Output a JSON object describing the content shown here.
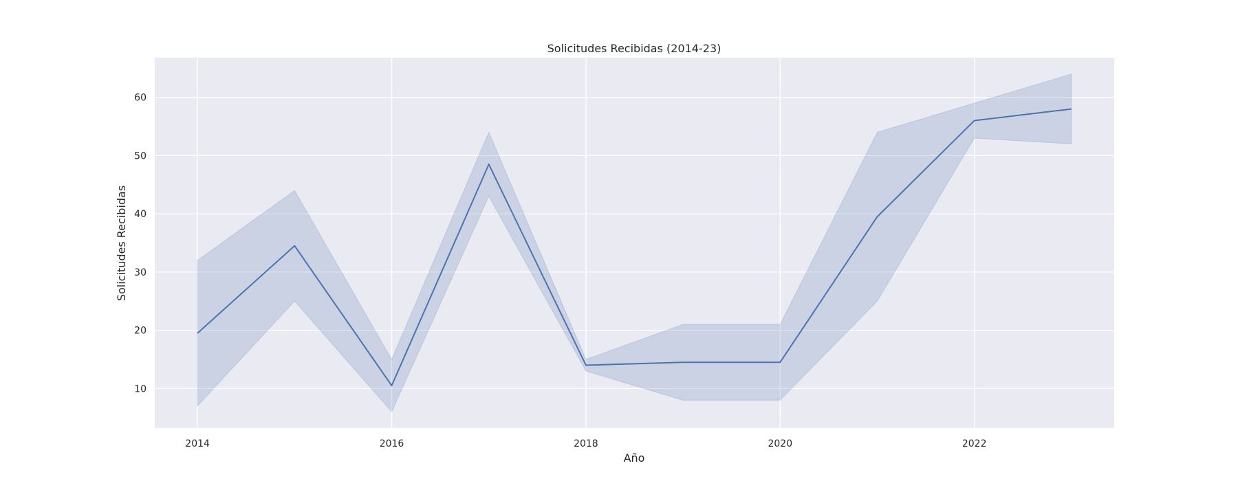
{
  "chart_data": {
    "type": "line",
    "title": "Solicitudes Recibidas (2014-23)",
    "xlabel": "Año",
    "ylabel": "Solicitudes Recibidas",
    "x": [
      2014,
      2015,
      2016,
      2017,
      2018,
      2019,
      2020,
      2021,
      2022,
      2023
    ],
    "series": [
      {
        "values": [
          19.5,
          34.5,
          10.5,
          48.5,
          14.0,
          14.5,
          14.5,
          39.5,
          56.0,
          58.0
        ],
        "ci_lower": [
          7.0,
          25.0,
          6.0,
          43.0,
          13.0,
          8.0,
          8.0,
          25.0,
          53.0,
          52.0
        ],
        "ci_upper": [
          32.0,
          44.0,
          15.0,
          54.0,
          15.0,
          21.0,
          21.0,
          54.0,
          59.0,
          64.0
        ]
      }
    ],
    "xlim": [
      2013.56,
      2023.44
    ],
    "ylim": [
      3.2,
      66.8
    ],
    "xticks": [
      "2014",
      "2016",
      "2018",
      "2020",
      "2022"
    ],
    "yticks": [
      "10",
      "20",
      "30",
      "40",
      "50",
      "60"
    ],
    "grid": true,
    "colors": {
      "line": "#4c72b0",
      "band": "#4c72b0",
      "plot_bg": "#eaeaf2",
      "grid": "#ffffff"
    }
  }
}
